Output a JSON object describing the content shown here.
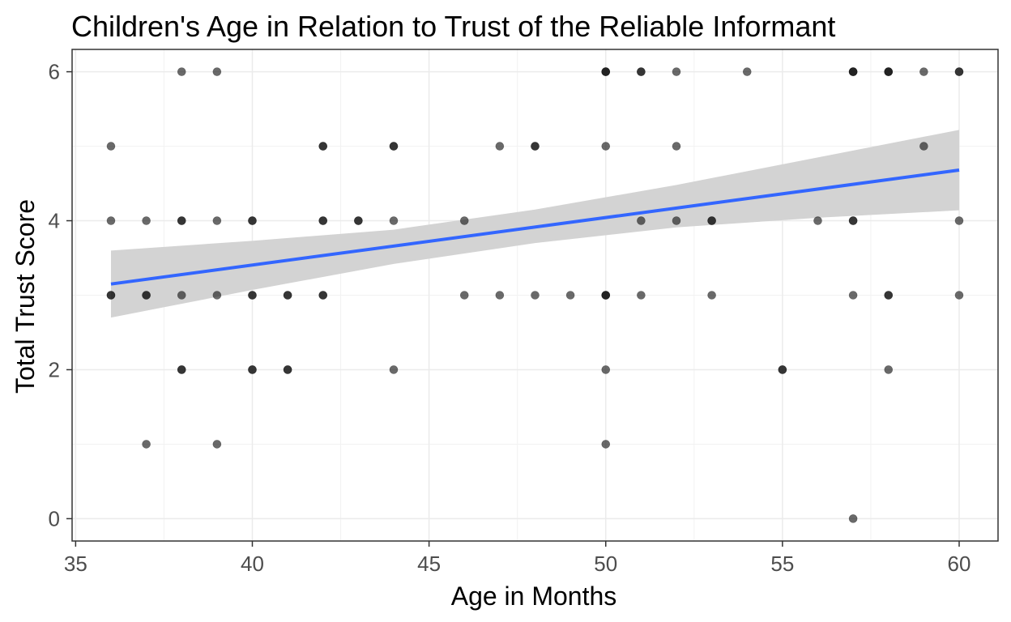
{
  "chart_data": {
    "type": "scatter",
    "title": "Children's Age in Relation to Trust of the Reliable Informant",
    "xlabel": "Age in Months",
    "ylabel": "Total Trust Score",
    "xlim": [
      34.9,
      61.1
    ],
    "ylim": [
      -0.3,
      6.3
    ],
    "xticks": [
      35,
      40,
      45,
      50,
      55,
      60
    ],
    "yticks": [
      0,
      2,
      4,
      6
    ],
    "xtick_labels": [
      "35",
      "40",
      "45",
      "50",
      "55",
      "60"
    ],
    "ytick_labels": [
      "0",
      "2",
      "4",
      "6"
    ],
    "grid": true,
    "points": [
      [
        36,
        5
      ],
      [
        36,
        4
      ],
      [
        36,
        3
      ],
      [
        36,
        3
      ],
      [
        37,
        4
      ],
      [
        37,
        3
      ],
      [
        37,
        3
      ],
      [
        37,
        1
      ],
      [
        38,
        6
      ],
      [
        38,
        4
      ],
      [
        38,
        4
      ],
      [
        38,
        3
      ],
      [
        38,
        2
      ],
      [
        38,
        2
      ],
      [
        39,
        6
      ],
      [
        39,
        4
      ],
      [
        39,
        3
      ],
      [
        39,
        1
      ],
      [
        40,
        4
      ],
      [
        40,
        4
      ],
      [
        40,
        3
      ],
      [
        40,
        3
      ],
      [
        40,
        2
      ],
      [
        40,
        2
      ],
      [
        41,
        3
      ],
      [
        41,
        3
      ],
      [
        41,
        2
      ],
      [
        41,
        2
      ],
      [
        42,
        5
      ],
      [
        42,
        5
      ],
      [
        42,
        4
      ],
      [
        42,
        4
      ],
      [
        42,
        3
      ],
      [
        42,
        3
      ],
      [
        43,
        4
      ],
      [
        43,
        4
      ],
      [
        44,
        5
      ],
      [
        44,
        5
      ],
      [
        44,
        4
      ],
      [
        44,
        2
      ],
      [
        46,
        4
      ],
      [
        46,
        3
      ],
      [
        47,
        5
      ],
      [
        47,
        3
      ],
      [
        48,
        5
      ],
      [
        48,
        5
      ],
      [
        48,
        3
      ],
      [
        49,
        3
      ],
      [
        50,
        6
      ],
      [
        50,
        6
      ],
      [
        50,
        6
      ],
      [
        50,
        5
      ],
      [
        50,
        3
      ],
      [
        50,
        3
      ],
      [
        50,
        3
      ],
      [
        50,
        2
      ],
      [
        50,
        1
      ],
      [
        51,
        6
      ],
      [
        51,
        6
      ],
      [
        51,
        4
      ],
      [
        51,
        3
      ],
      [
        52,
        6
      ],
      [
        52,
        5
      ],
      [
        52,
        4
      ],
      [
        53,
        4
      ],
      [
        53,
        4
      ],
      [
        53,
        3
      ],
      [
        54,
        6
      ],
      [
        55,
        2
      ],
      [
        55,
        2
      ],
      [
        56,
        4
      ],
      [
        57,
        6
      ],
      [
        57,
        6
      ],
      [
        57,
        6
      ],
      [
        57,
        4
      ],
      [
        57,
        4
      ],
      [
        57,
        3
      ],
      [
        57,
        0
      ],
      [
        58,
        6
      ],
      [
        58,
        6
      ],
      [
        58,
        6
      ],
      [
        58,
        3
      ],
      [
        58,
        3
      ],
      [
        58,
        2
      ],
      [
        59,
        6
      ],
      [
        59,
        5
      ],
      [
        60,
        6
      ],
      [
        60,
        6
      ],
      [
        60,
        4
      ],
      [
        60,
        3
      ]
    ],
    "trend_line": {
      "x": [
        36,
        60
      ],
      "y": [
        3.15,
        4.68
      ],
      "color": "#3366FF"
    },
    "confidence_band": {
      "x": [
        36,
        40,
        44,
        48,
        52,
        56,
        60
      ],
      "lower": [
        2.7,
        3.07,
        3.42,
        3.7,
        3.91,
        4.04,
        4.14
      ],
      "upper": [
        3.6,
        3.73,
        3.88,
        4.15,
        4.48,
        4.85,
        5.22
      ],
      "color": "#d3d3d3"
    },
    "point_color": "#1a1a1a",
    "point_opacity": 0.65
  }
}
